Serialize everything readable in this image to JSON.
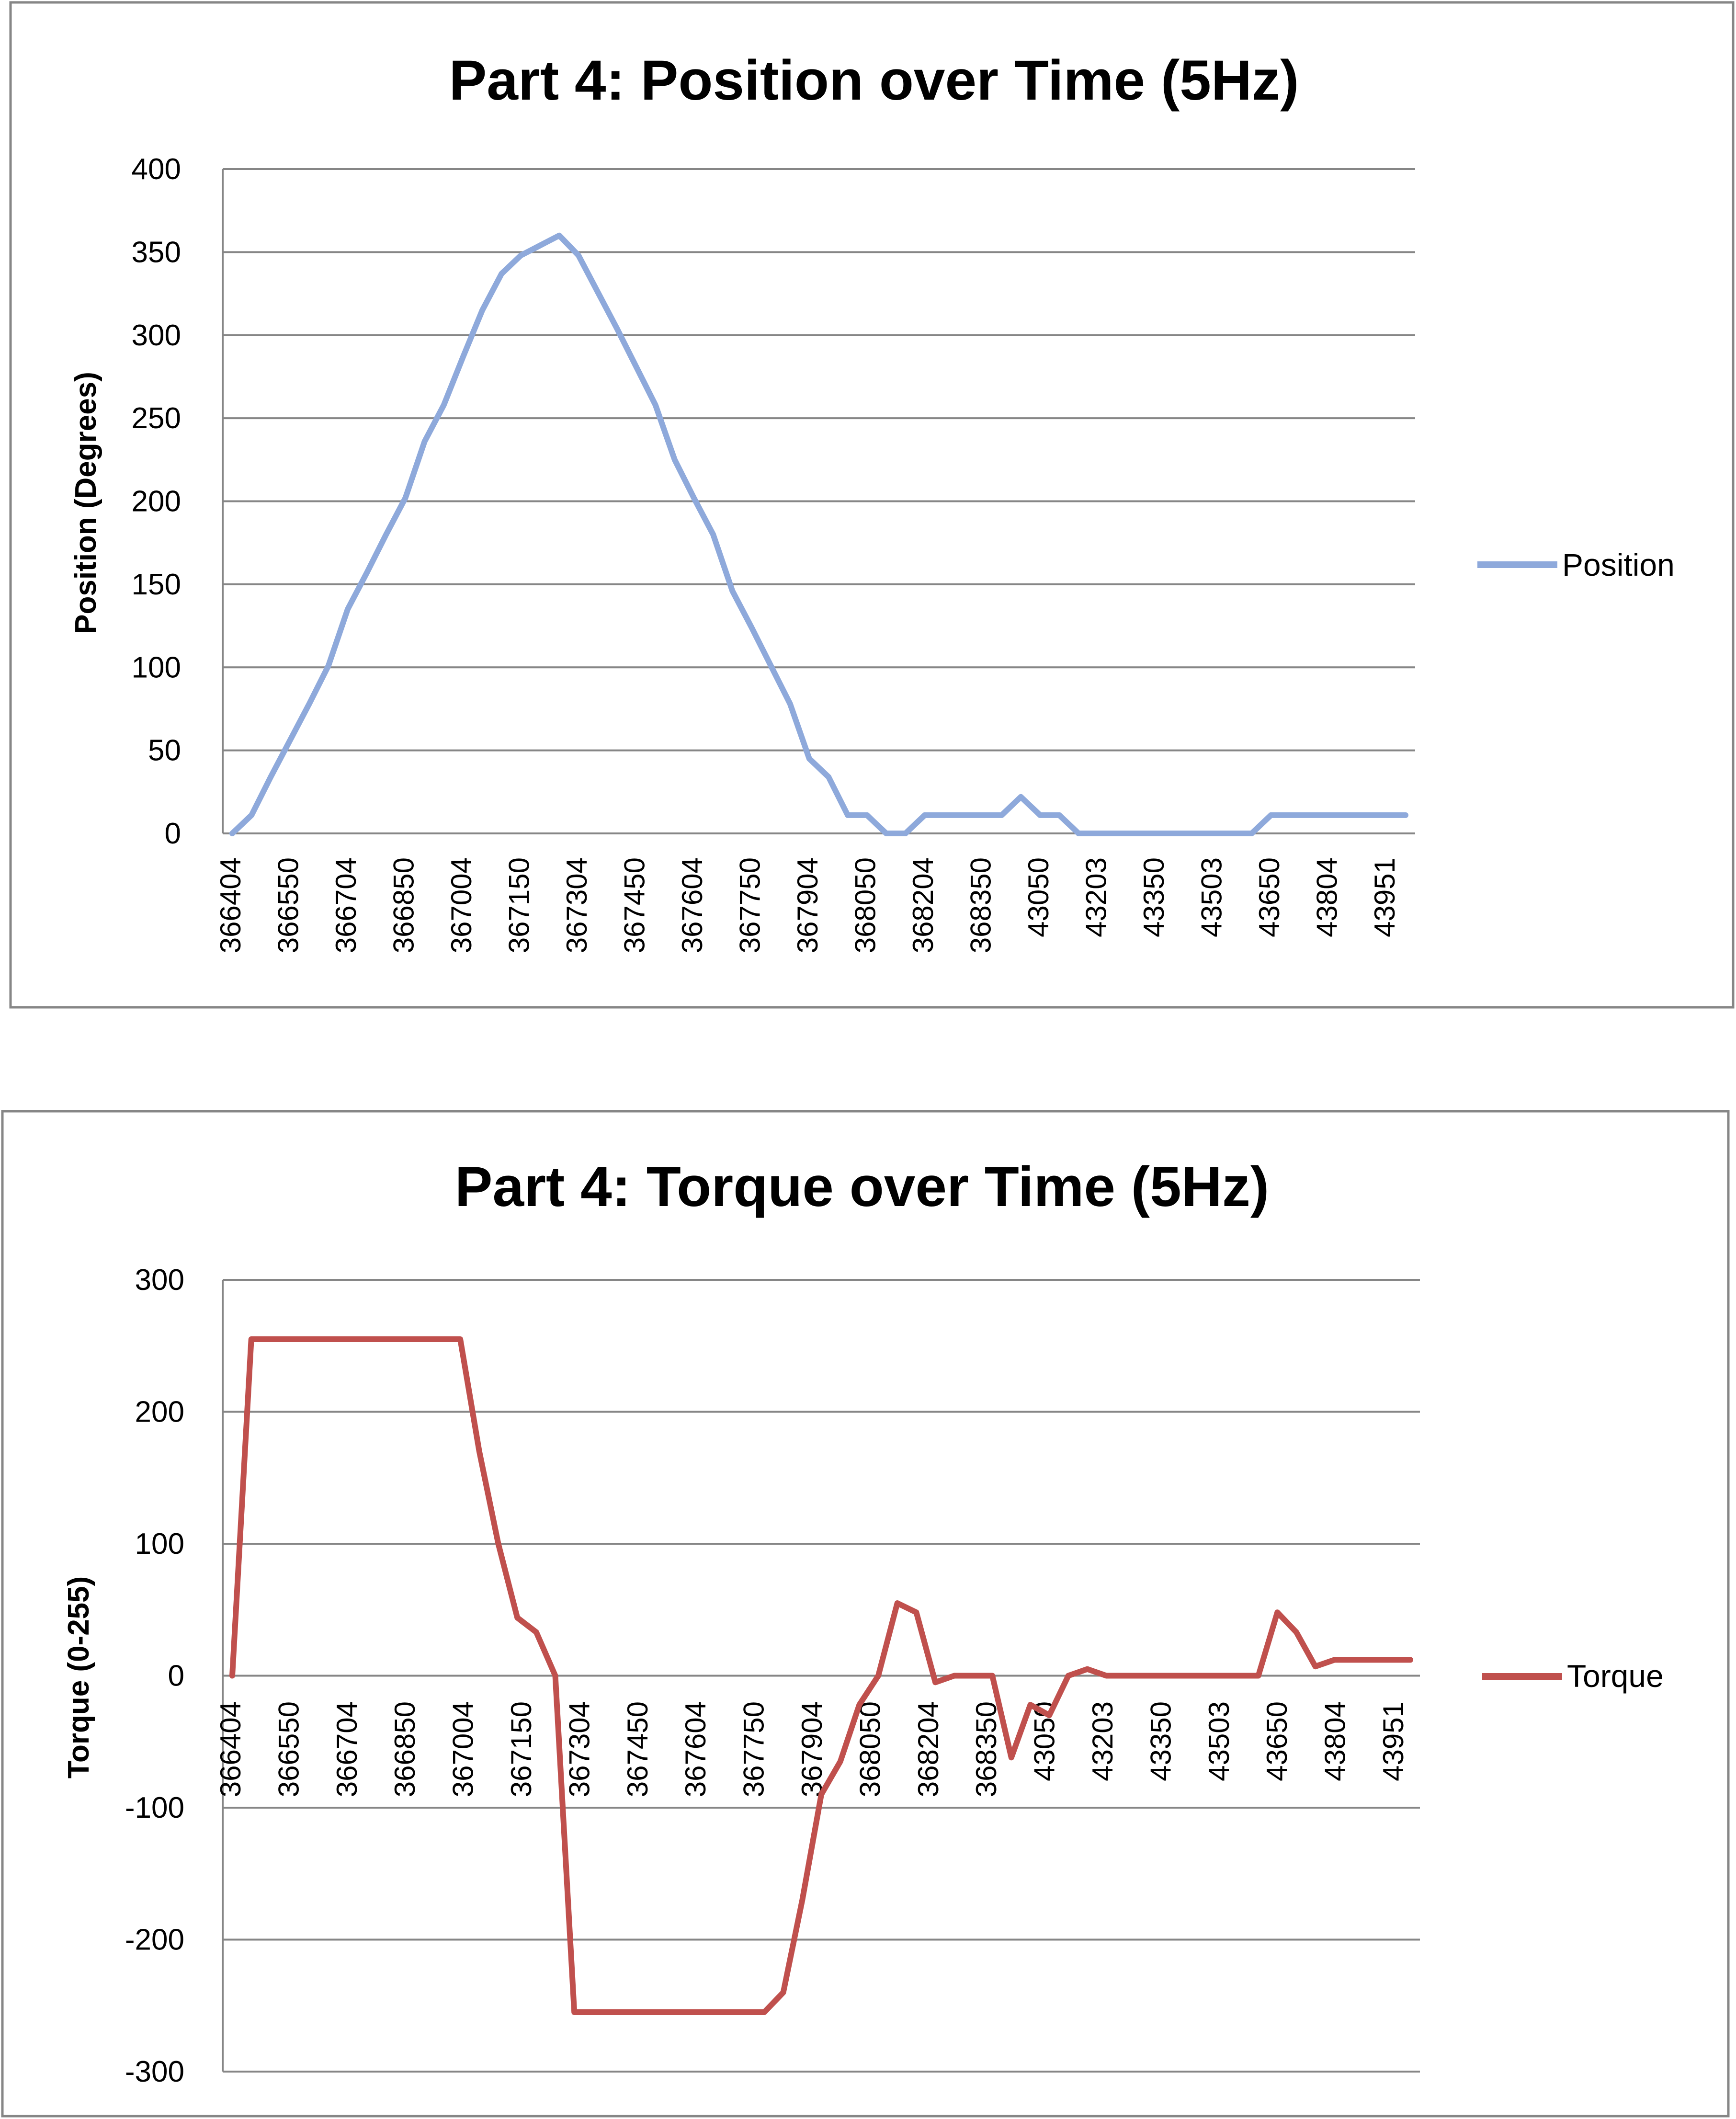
{
  "chart_data": [
    {
      "type": "line",
      "title": "Part 4: Position over Time (5Hz)",
      "xlabel": "",
      "ylabel": "Position (Degrees)",
      "ylim": [
        0,
        400
      ],
      "yticks": [
        0,
        50,
        100,
        150,
        200,
        250,
        300,
        350,
        400
      ],
      "grid": true,
      "legend_position": "right",
      "color": "#8EA9DB",
      "x_tick_labels": [
        "366404",
        "366550",
        "366704",
        "366850",
        "367004",
        "367150",
        "367304",
        "367450",
        "367604",
        "367750",
        "367904",
        "368050",
        "368204",
        "368350",
        "43050",
        "43203",
        "43350",
        "43503",
        "43650",
        "43804",
        "43951"
      ],
      "series": [
        {
          "name": "Position",
          "values": [
            0,
            11,
            34,
            56,
            78,
            101,
            135,
            157,
            180,
            202,
            236,
            258,
            287,
            315,
            337,
            348,
            354,
            360,
            348,
            326,
            304,
            281,
            258,
            225,
            202,
            180,
            146,
            124,
            101,
            78,
            45,
            34,
            11,
            11,
            0,
            0,
            11,
            11,
            11,
            11,
            11,
            22,
            11,
            11,
            0,
            0,
            0,
            0,
            0,
            0,
            0,
            0,
            0,
            0,
            11,
            11,
            11,
            11,
            11,
            11,
            11,
            11
          ]
        }
      ]
    },
    {
      "type": "line",
      "title": "Part 4: Torque over Time (5Hz)",
      "xlabel": "",
      "ylabel": "Torque (0-255)",
      "ylim": [
        -300,
        300
      ],
      "yticks": [
        -300,
        -200,
        -100,
        0,
        100,
        200,
        300
      ],
      "grid": true,
      "legend_position": "right",
      "color": "#C0504D",
      "x_tick_labels": [
        "366404",
        "366550",
        "366704",
        "366850",
        "367004",
        "367150",
        "367304",
        "367450",
        "367604",
        "367750",
        "367904",
        "368050",
        "368204",
        "368350",
        "43050",
        "43203",
        "43350",
        "43503",
        "43650",
        "43804",
        "43951"
      ],
      "series": [
        {
          "name": "Torque",
          "values": [
            0,
            255,
            255,
            255,
            255,
            255,
            255,
            255,
            255,
            255,
            255,
            255,
            255,
            170,
            100,
            44,
            33,
            0,
            -255,
            -255,
            -255,
            -255,
            -255,
            -255,
            -255,
            -255,
            -255,
            -255,
            -255,
            -240,
            -170,
            -90,
            -65,
            -22,
            0,
            55,
            48,
            -5,
            0,
            0,
            0,
            -62,
            -22,
            -30,
            0,
            5,
            0,
            0,
            0,
            0,
            0,
            0,
            0,
            0,
            0,
            48,
            33,
            7,
            12,
            12,
            12,
            12,
            12
          ]
        }
      ]
    }
  ]
}
